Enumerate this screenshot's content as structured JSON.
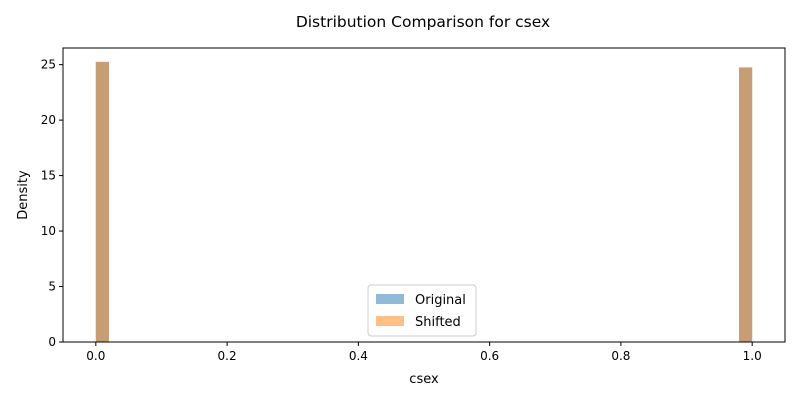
{
  "chart_data": {
    "type": "bar",
    "title": "Distribution Comparison for csex",
    "xlabel": "csex",
    "ylabel": "Density",
    "xlim": [
      -0.05,
      1.05
    ],
    "ylim": [
      0,
      26.5
    ],
    "xticks": [
      "0.0",
      "0.2",
      "0.4",
      "0.6",
      "0.8",
      "1.0"
    ],
    "yticks": [
      "0",
      "5",
      "10",
      "15",
      "20",
      "25"
    ],
    "bin_width": 0.02,
    "grid": false,
    "legend_position": "lower center",
    "series": [
      {
        "name": "Original",
        "color": "#1f77b4",
        "alpha": 0.5,
        "bins": [
          {
            "x": 0.0,
            "value": 25.25
          },
          {
            "x": 0.98,
            "value": 24.75
          }
        ]
      },
      {
        "name": "Shifted",
        "color": "#ff7f0e",
        "alpha": 0.5,
        "bins": [
          {
            "x": 0.0,
            "value": 25.25
          },
          {
            "x": 0.98,
            "value": 24.75
          }
        ]
      }
    ]
  }
}
